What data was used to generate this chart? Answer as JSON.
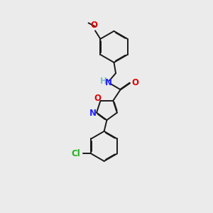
{
  "bg_color": "#ebebeb",
  "bond_color": "#1a1a1a",
  "line_width": 1.4,
  "dbo": 0.035,
  "atom_colors": {
    "N": "#2020ff",
    "O": "#e00000",
    "Cl": "#20b020",
    "H": "#7fbfbf"
  },
  "fs": 8.5,
  "fs_small": 7.5
}
